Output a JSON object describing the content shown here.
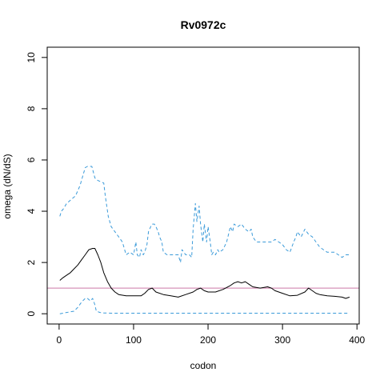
{
  "chart_data": {
    "type": "line",
    "title": "Rv0972c",
    "xlabel": "codon",
    "ylabel": "omega (dN/dS)",
    "xlim": [
      -16,
      403
    ],
    "ylim": [
      -0.4,
      10.4
    ],
    "xticks": [
      0,
      100,
      200,
      300,
      400
    ],
    "yticks": [
      0,
      2,
      4,
      6,
      8,
      10
    ],
    "grid": false,
    "legend": "none",
    "reference_line": {
      "y": 1,
      "color": "#cc79a7"
    },
    "series": [
      {
        "style": "solid",
        "color": "#000000",
        "x": [
          1,
          5,
          10,
          15,
          20,
          25,
          30,
          35,
          40,
          45,
          48,
          52,
          56,
          60,
          65,
          70,
          75,
          80,
          90,
          100,
          110,
          115,
          120,
          125,
          130,
          140,
          150,
          160,
          170,
          180,
          185,
          190,
          195,
          200,
          210,
          220,
          230,
          235,
          240,
          245,
          250,
          255,
          260,
          270,
          280,
          285,
          290,
          300,
          310,
          320,
          330,
          335,
          340,
          345,
          350,
          360,
          370,
          380,
          385,
          390
        ],
        "y": [
          1.3,
          1.4,
          1.5,
          1.6,
          1.75,
          1.9,
          2.1,
          2.3,
          2.5,
          2.55,
          2.55,
          2.3,
          2.0,
          1.6,
          1.25,
          1.0,
          0.85,
          0.75,
          0.7,
          0.7,
          0.7,
          0.8,
          0.95,
          1.0,
          0.85,
          0.75,
          0.7,
          0.65,
          0.75,
          0.85,
          0.95,
          1.0,
          0.9,
          0.85,
          0.85,
          0.95,
          1.1,
          1.2,
          1.25,
          1.2,
          1.25,
          1.15,
          1.05,
          1.0,
          1.05,
          1.0,
          0.9,
          0.8,
          0.7,
          0.72,
          0.85,
          1.0,
          0.9,
          0.8,
          0.75,
          0.7,
          0.68,
          0.65,
          0.6,
          0.65
        ]
      },
      {
        "style": "dashed",
        "color": "#3a9ad9",
        "x": [
          1,
          3,
          6,
          10,
          14,
          18,
          22,
          25,
          28,
          32,
          35,
          38,
          40,
          44,
          48,
          52,
          56,
          60,
          62,
          66,
          70,
          75,
          80,
          85,
          88,
          90,
          95,
          100,
          103,
          105,
          108,
          110,
          113,
          115,
          118,
          120,
          123,
          125,
          128,
          130,
          133,
          135,
          138,
          140,
          145,
          150,
          155,
          160,
          163,
          165,
          170,
          175,
          178,
          180,
          183,
          185,
          188,
          190,
          193,
          195,
          198,
          200,
          203,
          205,
          207,
          210,
          213,
          215,
          220,
          225,
          230,
          233,
          235,
          240,
          245,
          250,
          255,
          258,
          260,
          265,
          270,
          275,
          280,
          285,
          290,
          295,
          300,
          305,
          310,
          315,
          318,
          320,
          325,
          330,
          335,
          340,
          345,
          350,
          355,
          360,
          365,
          370,
          375,
          380,
          385,
          390
        ],
        "y": [
          3.8,
          4.0,
          4.1,
          4.3,
          4.4,
          4.5,
          4.6,
          4.8,
          5.0,
          5.4,
          5.7,
          5.75,
          5.75,
          5.75,
          5.3,
          5.2,
          5.15,
          5.1,
          4.6,
          3.8,
          3.4,
          3.2,
          3.0,
          2.8,
          2.5,
          2.3,
          2.4,
          2.3,
          2.8,
          2.3,
          2.2,
          2.5,
          2.3,
          2.4,
          2.7,
          3.2,
          3.4,
          3.5,
          3.5,
          3.4,
          3.2,
          3.0,
          2.8,
          2.4,
          2.3,
          2.3,
          2.3,
          2.3,
          2.0,
          2.5,
          2.3,
          2.3,
          2.2,
          3.3,
          4.3,
          3.6,
          4.2,
          3.5,
          2.8,
          3.5,
          2.8,
          3.4,
          2.8,
          2.3,
          2.4,
          2.3,
          2.5,
          2.4,
          2.5,
          2.8,
          3.4,
          3.2,
          3.5,
          3.4,
          3.5,
          3.3,
          3.2,
          3.3,
          3.0,
          2.8,
          2.8,
          2.8,
          2.8,
          2.8,
          2.9,
          2.8,
          2.7,
          2.5,
          2.4,
          2.8,
          3.0,
          3.2,
          3.0,
          3.3,
          3.1,
          3.0,
          2.8,
          2.6,
          2.5,
          2.4,
          2.4,
          2.4,
          2.3,
          2.2,
          2.3,
          2.3
        ]
      },
      {
        "style": "dashed",
        "color": "#3a9ad9",
        "x": [
          1,
          10,
          20,
          25,
          30,
          35,
          38,
          42,
          45,
          48,
          50,
          55,
          60,
          70,
          80,
          100,
          150,
          200,
          250,
          300,
          350,
          390
        ],
        "y": [
          0.0,
          0.05,
          0.1,
          0.25,
          0.45,
          0.6,
          0.6,
          0.5,
          0.6,
          0.35,
          0.1,
          0.05,
          0.03,
          0.02,
          0.02,
          0.02,
          0.02,
          0.02,
          0.02,
          0.02,
          0.02,
          0.02
        ]
      }
    ]
  }
}
